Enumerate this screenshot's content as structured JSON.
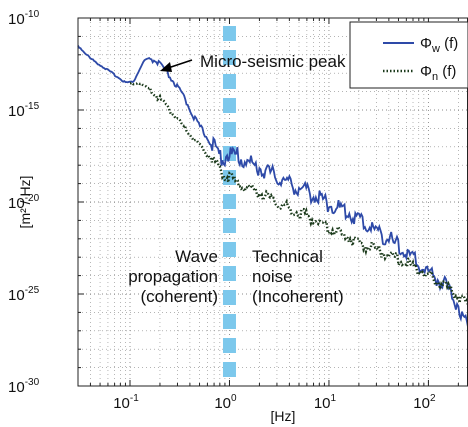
{
  "chart_data": {
    "type": "line",
    "title": "",
    "xlabel": "[Hz]",
    "ylabel": "[m² / Hz]",
    "xscale": "log",
    "yscale": "log",
    "xlim": [
      0.03,
      250
    ],
    "ylim": [
      1e-30,
      1e-10
    ],
    "grid": "dotted major and minor grid",
    "x_tick_labels": [
      {
        "value": 0.1,
        "mant": "10",
        "exp": "-1"
      },
      {
        "value": 1,
        "mant": "10",
        "exp": "0"
      },
      {
        "value": 10,
        "mant": "10",
        "exp": "1"
      },
      {
        "value": 100,
        "mant": "10",
        "exp": "2"
      }
    ],
    "y_tick_labels": [
      {
        "value": 1e-10,
        "mant": "10",
        "exp": "-10"
      },
      {
        "value": 1e-15,
        "mant": "10",
        "exp": "-15"
      },
      {
        "value": 1e-20,
        "mant": "10",
        "exp": "-20"
      },
      {
        "value": 1e-25,
        "mant": "10",
        "exp": "-25"
      },
      {
        "value": 1e-30,
        "mant": "10",
        "exp": "-30"
      }
    ],
    "legend_position": "top-right",
    "series": [
      {
        "name": "Φw (f)",
        "legend_main": "Φ",
        "legend_sub": "w",
        "legend_tail": " (f)",
        "style": "solid",
        "color": "#2e4aa8",
        "x": [
          0.03,
          0.04,
          0.055,
          0.075,
          0.09,
          0.1,
          0.11,
          0.125,
          0.14,
          0.16,
          0.2,
          0.26,
          0.35,
          0.45,
          0.6,
          0.75,
          0.85,
          1.0,
          1.2,
          1.6,
          2.5,
          4,
          7,
          10,
          16,
          25,
          40,
          60,
          100,
          150,
          200,
          250
        ],
        "logy": [
          -11.5,
          -12.2,
          -12.7,
          -13.2,
          -13.5,
          -13.5,
          -13.4,
          -12.8,
          -12.3,
          -12.2,
          -12.5,
          -13.3,
          -14.3,
          -15.5,
          -16.5,
          -17.3,
          -17.6,
          -17.4,
          -17.5,
          -17.9,
          -18.4,
          -19.0,
          -19.6,
          -20.1,
          -20.6,
          -21.3,
          -22.0,
          -22.8,
          -23.8,
          -24.5,
          -25.6,
          -26.8
        ]
      },
      {
        "name": "Φn (f)",
        "legend_main": "Φ",
        "legend_sub": "n",
        "legend_tail": " (f)",
        "style": "dotted",
        "color": "#1b3a1b",
        "x": [
          0.1,
          0.12,
          0.15,
          0.2,
          0.25,
          0.3,
          0.4,
          0.5,
          0.6,
          0.7,
          0.8,
          0.9,
          1.0,
          1.5,
          2,
          3,
          5,
          8,
          10,
          15,
          20,
          30,
          50,
          70,
          100,
          150,
          200,
          250
        ],
        "logy": [
          -13.6,
          -13.5,
          -13.8,
          -14.4,
          -15.0,
          -15.5,
          -16.3,
          -16.9,
          -17.4,
          -17.8,
          -18.2,
          -18.5,
          -18.7,
          -19.2,
          -19.5,
          -20.0,
          -20.6,
          -21.1,
          -21.4,
          -21.9,
          -22.2,
          -22.6,
          -23.1,
          -23.5,
          -24.0,
          -24.6,
          -25.1,
          -25.6
        ]
      }
    ],
    "annotations": {
      "peak": "Micro-seismic peak",
      "left_lines": [
        "Wave",
        "propagation",
        "(coherent)"
      ],
      "right_lines": [
        "Technical",
        "noise",
        "(Incoherent)"
      ]
    },
    "divider": {
      "x": 1.0,
      "color": "#7cc8ec"
    }
  }
}
